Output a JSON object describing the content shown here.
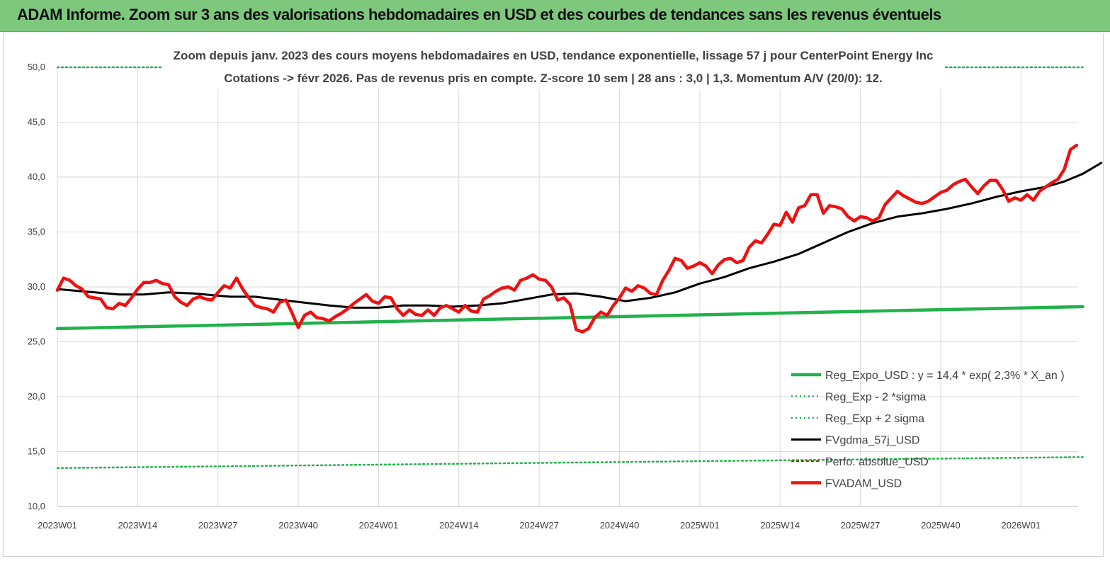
{
  "banner": {
    "title": "ADAM Informe. Zoom sur 3 ans des valorisations hebdomadaires en USD et des courbes de tendances sans les revenus éventuels"
  },
  "chart_data": {
    "type": "line",
    "title_line1": "Zoom depuis janv. 2023 des cours moyens hebdomadaires en USD, tendance exponentielle, lissage 57 j pour CenterPoint Energy Inc",
    "title_line2": "Cotations -> févr 2026.  Pas de revenus pris en compte. Z-score 10 sem  | 28 ans : 3,0  | 1,3. Momentum A/V (20/0): 12.",
    "x_tick_labels": [
      "2023W01",
      "2023W14",
      "2023W27",
      "2023W40",
      "2024W01",
      "2024W14",
      "2024W27",
      "2024W40",
      "2025W01",
      "2025W14",
      "2025W27",
      "2025W40",
      "2026W01"
    ],
    "y_tick_labels": [
      "10,0",
      "15,0",
      "20,0",
      "25,0",
      "30,0",
      "35,0",
      "40,0",
      "45,0",
      "50,0"
    ],
    "ylim": [
      10,
      50
    ],
    "x_week_range": [
      0,
      166
    ],
    "grid": true,
    "legend_position": "bottom-right",
    "series": [
      {
        "name": "Reg_Expo_USD : y = 14,4 * exp( 2,3% *  X_an )",
        "color": "#22b14c",
        "style": "solid-thick",
        "points": [
          [
            0,
            26.2
          ],
          [
            166,
            28.2
          ]
        ]
      },
      {
        "name": "Reg_Exp - 2 *sigma",
        "color": "#22b14c",
        "style": "dotted",
        "points": [
          [
            0,
            13.5
          ],
          [
            166,
            14.5
          ]
        ]
      },
      {
        "name": "Reg_Exp + 2 sigma",
        "color": "#22b14c",
        "style": "dotted",
        "points": [
          [
            0,
            50.0
          ],
          [
            166,
            50.0
          ]
        ]
      },
      {
        "name": "FVgdma_57j_USD",
        "color": "#000000",
        "style": "solid",
        "points": [
          [
            0,
            29.8
          ],
          [
            4,
            29.6
          ],
          [
            10,
            29.3
          ],
          [
            14,
            29.3
          ],
          [
            18,
            29.5
          ],
          [
            22,
            29.4
          ],
          [
            28,
            29.1
          ],
          [
            32,
            29.1
          ],
          [
            38,
            28.7
          ],
          [
            44,
            28.3
          ],
          [
            48,
            28.1
          ],
          [
            52,
            28.1
          ],
          [
            56,
            28.3
          ],
          [
            60,
            28.3
          ],
          [
            64,
            28.2
          ],
          [
            68,
            28.3
          ],
          [
            72,
            28.5
          ],
          [
            76,
            28.9
          ],
          [
            80,
            29.3
          ],
          [
            84,
            29.4
          ],
          [
            88,
            29.1
          ],
          [
            92,
            28.7
          ],
          [
            96,
            29.0
          ],
          [
            100,
            29.5
          ],
          [
            104,
            30.3
          ],
          [
            108,
            30.9
          ],
          [
            112,
            31.7
          ],
          [
            116,
            32.3
          ],
          [
            120,
            33.0
          ],
          [
            124,
            34.0
          ],
          [
            128,
            35.0
          ],
          [
            132,
            35.8
          ],
          [
            136,
            36.4
          ],
          [
            140,
            36.7
          ],
          [
            144,
            37.1
          ],
          [
            148,
            37.6
          ],
          [
            152,
            38.2
          ],
          [
            156,
            38.7
          ],
          [
            160,
            39.1
          ],
          [
            163,
            39.6
          ],
          [
            166,
            40.3
          ],
          [
            169,
            41.3
          ]
        ]
      },
      {
        "name": "Perfo. absolue_USD",
        "color": "#7b3f00",
        "style": "dashed",
        "points": []
      },
      {
        "name": "FVADAM_USD",
        "color": "#ee1111",
        "style": "solid-thick",
        "points": [
          [
            0,
            29.7
          ],
          [
            1,
            30.8
          ],
          [
            2,
            30.6
          ],
          [
            3,
            30.1
          ],
          [
            4,
            29.8
          ],
          [
            5,
            29.1
          ],
          [
            6,
            29.0
          ],
          [
            7,
            28.9
          ],
          [
            8,
            28.1
          ],
          [
            9,
            28.0
          ],
          [
            10,
            28.5
          ],
          [
            11,
            28.3
          ],
          [
            12,
            29.0
          ],
          [
            13,
            29.8
          ],
          [
            14,
            30.4
          ],
          [
            15,
            30.4
          ],
          [
            16,
            30.6
          ],
          [
            17,
            30.3
          ],
          [
            18,
            30.2
          ],
          [
            19,
            29.1
          ],
          [
            20,
            28.6
          ],
          [
            21,
            28.3
          ],
          [
            22,
            28.9
          ],
          [
            23,
            29.1
          ],
          [
            24,
            28.9
          ],
          [
            25,
            28.8
          ],
          [
            26,
            29.5
          ],
          [
            27,
            30.1
          ],
          [
            28,
            29.9
          ],
          [
            29,
            30.8
          ],
          [
            30,
            29.8
          ],
          [
            31,
            29.0
          ],
          [
            32,
            28.3
          ],
          [
            33,
            28.1
          ],
          [
            34,
            28.0
          ],
          [
            35,
            27.7
          ],
          [
            36,
            28.6
          ],
          [
            37,
            28.8
          ],
          [
            38,
            27.6
          ],
          [
            39,
            26.3
          ],
          [
            40,
            27.4
          ],
          [
            41,
            27.7
          ],
          [
            42,
            27.2
          ],
          [
            43,
            27.1
          ],
          [
            44,
            26.9
          ],
          [
            45,
            27.3
          ],
          [
            46,
            27.6
          ],
          [
            47,
            28.0
          ],
          [
            48,
            28.5
          ],
          [
            49,
            28.9
          ],
          [
            50,
            29.3
          ],
          [
            51,
            28.7
          ],
          [
            52,
            28.5
          ],
          [
            53,
            29.1
          ],
          [
            54,
            29.0
          ],
          [
            55,
            28.0
          ],
          [
            56,
            27.4
          ],
          [
            57,
            27.9
          ],
          [
            58,
            27.5
          ],
          [
            59,
            27.4
          ],
          [
            60,
            27.9
          ],
          [
            61,
            27.4
          ],
          [
            62,
            28.1
          ],
          [
            63,
            28.3
          ],
          [
            64,
            28.0
          ],
          [
            65,
            27.7
          ],
          [
            66,
            28.3
          ],
          [
            67,
            27.8
          ],
          [
            68,
            27.7
          ],
          [
            69,
            28.9
          ],
          [
            70,
            29.2
          ],
          [
            71,
            29.6
          ],
          [
            72,
            29.9
          ],
          [
            73,
            30.0
          ],
          [
            74,
            29.7
          ],
          [
            75,
            30.6
          ],
          [
            76,
            30.8
          ],
          [
            77,
            31.1
          ],
          [
            78,
            30.7
          ],
          [
            79,
            30.6
          ],
          [
            80,
            30.0
          ],
          [
            81,
            28.8
          ],
          [
            82,
            29.0
          ],
          [
            83,
            28.4
          ],
          [
            84,
            26.1
          ],
          [
            85,
            25.9
          ],
          [
            86,
            26.2
          ],
          [
            87,
            27.2
          ],
          [
            88,
            27.7
          ],
          [
            89,
            27.4
          ],
          [
            90,
            28.3
          ],
          [
            91,
            29.0
          ],
          [
            92,
            29.9
          ],
          [
            93,
            29.6
          ],
          [
            94,
            30.1
          ],
          [
            95,
            29.9
          ],
          [
            96,
            29.4
          ],
          [
            97,
            29.3
          ],
          [
            98,
            30.6
          ],
          [
            99,
            31.5
          ],
          [
            100,
            32.6
          ],
          [
            101,
            32.4
          ],
          [
            102,
            31.7
          ],
          [
            103,
            31.9
          ],
          [
            104,
            32.2
          ],
          [
            105,
            31.9
          ],
          [
            106,
            31.2
          ],
          [
            107,
            32.0
          ],
          [
            108,
            32.5
          ],
          [
            109,
            32.6
          ],
          [
            110,
            32.2
          ],
          [
            111,
            32.4
          ],
          [
            112,
            33.6
          ],
          [
            113,
            34.2
          ],
          [
            114,
            34.0
          ],
          [
            115,
            34.8
          ],
          [
            116,
            35.7
          ],
          [
            117,
            35.6
          ],
          [
            118,
            36.8
          ],
          [
            119,
            35.9
          ],
          [
            120,
            37.2
          ],
          [
            121,
            37.4
          ],
          [
            122,
            38.4
          ],
          [
            123,
            38.4
          ],
          [
            124,
            36.7
          ],
          [
            125,
            37.4
          ],
          [
            126,
            37.3
          ],
          [
            127,
            37.1
          ],
          [
            128,
            36.4
          ],
          [
            129,
            36.0
          ],
          [
            130,
            36.4
          ],
          [
            131,
            36.3
          ],
          [
            132,
            36.0
          ],
          [
            133,
            36.3
          ],
          [
            134,
            37.5
          ],
          [
            135,
            38.1
          ],
          [
            136,
            38.7
          ],
          [
            137,
            38.3
          ],
          [
            138,
            38.0
          ],
          [
            139,
            37.7
          ],
          [
            140,
            37.6
          ],
          [
            141,
            37.8
          ],
          [
            142,
            38.2
          ],
          [
            143,
            38.6
          ],
          [
            144,
            38.8
          ],
          [
            145,
            39.3
          ],
          [
            146,
            39.6
          ],
          [
            147,
            39.8
          ],
          [
            148,
            39.1
          ],
          [
            149,
            38.5
          ],
          [
            150,
            39.2
          ],
          [
            151,
            39.7
          ],
          [
            152,
            39.7
          ],
          [
            153,
            38.9
          ],
          [
            154,
            37.8
          ],
          [
            155,
            38.1
          ],
          [
            156,
            37.9
          ],
          [
            157,
            38.4
          ],
          [
            158,
            37.9
          ],
          [
            159,
            38.7
          ],
          [
            160,
            39.1
          ],
          [
            161,
            39.5
          ],
          [
            162,
            39.8
          ],
          [
            163,
            40.7
          ],
          [
            164,
            42.5
          ],
          [
            165,
            42.9
          ]
        ]
      }
    ]
  }
}
